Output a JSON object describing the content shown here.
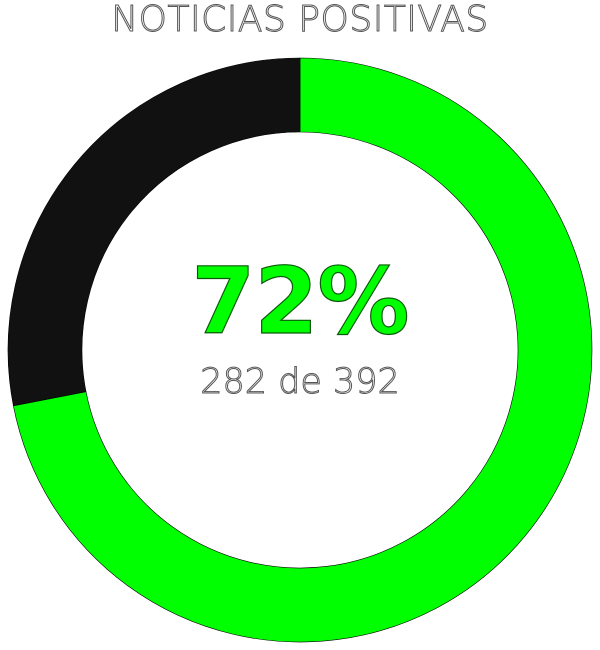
{
  "chart_data": {
    "type": "pie",
    "title": "NOTICIAS POSITIVAS",
    "center_value": "72%",
    "center_detail": "282 de 392",
    "positive": 282,
    "total": 392,
    "segments": [
      {
        "value": 282,
        "color": "#00ff00"
      },
      {
        "value": 110,
        "color": "#111111"
      }
    ]
  }
}
